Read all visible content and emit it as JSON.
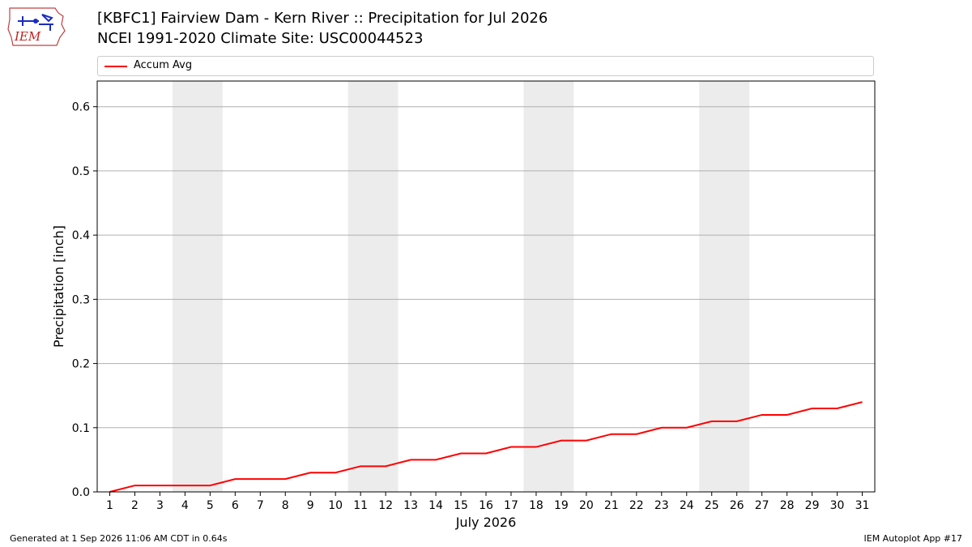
{
  "header": {
    "title_line1": "[KBFC1] Fairview Dam - Kern River :: Precipitation for Jul 2026",
    "title_line2": "NCEI 1991-2020 Climate Site: USC00044523",
    "logo_text": "IEM"
  },
  "legend": {
    "label": "Accum Avg",
    "color": "#ff0000"
  },
  "footer": {
    "left": "Generated at 1 Sep 2026 11:06 AM CDT in 0.64s",
    "right": "IEM Autoplot App #17"
  },
  "colors": {
    "line": "#ff0000",
    "weekend_band": "#ececec",
    "grid": "#b0b0b0"
  },
  "chart_data": {
    "type": "line",
    "title": "[KBFC1] Fairview Dam - Kern River :: Precipitation for Jul 2026",
    "subtitle": "NCEI 1991-2020 Climate Site: USC00044523",
    "xlabel": "July 2026",
    "ylabel": "Precipitation [inch]",
    "x": [
      1,
      2,
      3,
      4,
      5,
      6,
      7,
      8,
      9,
      10,
      11,
      12,
      13,
      14,
      15,
      16,
      17,
      18,
      19,
      20,
      21,
      22,
      23,
      24,
      25,
      26,
      27,
      28,
      29,
      30,
      31
    ],
    "xlim": [
      0.5,
      31.5
    ],
    "ylim": [
      0,
      0.64
    ],
    "yticks": [
      0.0,
      0.1,
      0.2,
      0.3,
      0.4,
      0.5,
      0.6
    ],
    "ytick_labels": [
      "0.0",
      "0.1",
      "0.2",
      "0.3",
      "0.4",
      "0.5",
      "0.6"
    ],
    "grid": "horizontal",
    "legend_position": "top",
    "shaded_weekends": [
      [
        4,
        5
      ],
      [
        11,
        12
      ],
      [
        18,
        19
      ],
      [
        25,
        26
      ]
    ],
    "series": [
      {
        "name": "Accum Avg",
        "values": [
          0.0,
          0.01,
          0.01,
          0.01,
          0.01,
          0.02,
          0.02,
          0.02,
          0.03,
          0.03,
          0.04,
          0.04,
          0.05,
          0.05,
          0.06,
          0.06,
          0.07,
          0.07,
          0.08,
          0.08,
          0.09,
          0.09,
          0.1,
          0.1,
          0.11,
          0.11,
          0.12,
          0.12,
          0.13,
          0.13,
          0.14
        ]
      }
    ]
  }
}
